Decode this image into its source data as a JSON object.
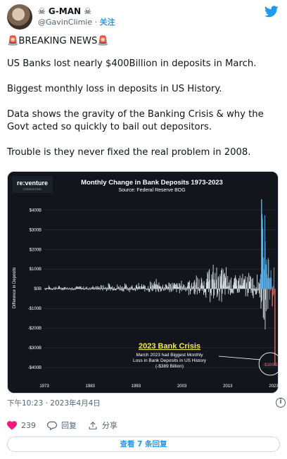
{
  "user": {
    "display_name": "☠ G-MAN ☠",
    "handle": "@GavinClimie",
    "follow_label": "关注",
    "separator": " · "
  },
  "tweet": {
    "paragraphs": [
      "🚨BREAKING NEWS🚨",
      "US Banks lost nearly $400Billion in deposits in March.",
      "Biggest monthly loss in deposits in US History.",
      "Data shows the gravity of the Banking Crisis & why the Govt acted so quickly to bail out depositors.",
      "Trouble is they never fixed the real problem in 2008."
    ],
    "timestamp": "下午10:23 · 2023年4月4日",
    "info_glyph": "i"
  },
  "actions": {
    "like_count": "239",
    "reply_label": "回复",
    "share_label": "分享"
  },
  "replies_button_label": "查看 7 条回复",
  "colors": {
    "accent": "#1d9bf0",
    "like_red": "#f91880",
    "positive_bar": "#5ab4f0",
    "negative_bar": "#e06666",
    "neutral_bar": "#d7dde3"
  },
  "chart_data": {
    "type": "bar",
    "brand": "re:venture",
    "brand_sub": "CONSULTING",
    "title": "Monthly Change in Bank Deposits 1973-2023",
    "subtitle": "Source: Federal Reserve BOG",
    "ylabel": "Difference in Deposits",
    "ylim": [
      -450,
      480
    ],
    "y_ticks": [
      400,
      300,
      200,
      100,
      0,
      -100,
      -200,
      -300,
      -400
    ],
    "y_tick_labels": [
      "$400B",
      "$300B",
      "$200B",
      "$100B",
      "$0B",
      "-$100B",
      "-$200B",
      "-$300B",
      "-$400B"
    ],
    "x_ticks": [
      1973,
      1983,
      1993,
      2003,
      2013,
      2023
    ],
    "x_range": [
      1973,
      2023.3
    ],
    "series_segments": [
      {
        "from": 1973,
        "to": 1985,
        "amp": 14
      },
      {
        "from": 1985,
        "to": 1995,
        "amp": 25
      },
      {
        "from": 1995,
        "to": 2004,
        "amp": 40
      },
      {
        "from": 2004,
        "to": 2008,
        "amp": 60
      },
      {
        "from": 2008,
        "to": 2013,
        "amp": 110
      },
      {
        "from": 2013,
        "to": 2020,
        "amp": 80
      },
      {
        "from": 2020,
        "to": 2022,
        "amp": 330
      },
      {
        "from": 2022,
        "to": 2023.2,
        "amp": 120
      }
    ],
    "highlight_points": [
      {
        "x": 2020.25,
        "y": 455
      },
      {
        "x": 2020.33,
        "y": 380
      },
      {
        "x": 2020.42,
        "y": 290
      },
      {
        "x": 2021.0,
        "y": 240
      },
      {
        "x": 2022.6,
        "y": -90
      },
      {
        "x": 2023.17,
        "y": -389
      }
    ],
    "annotation": {
      "heading": "2023 Bank Crisis",
      "lines": [
        "March 2023 had Biggest Monthly",
        "Loss in Bank Deposits in US History",
        "(-$389 Billion)"
      ],
      "point_label": "-$389B"
    }
  }
}
